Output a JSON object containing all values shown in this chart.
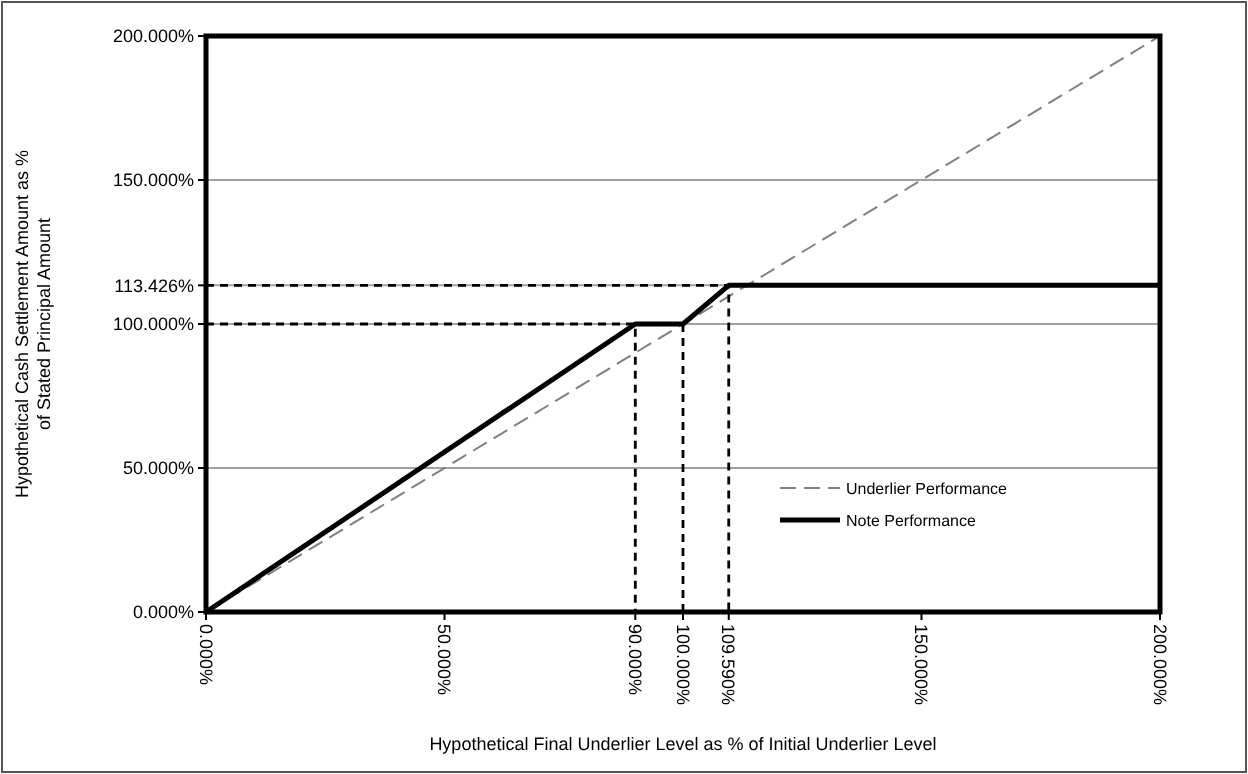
{
  "chart_data": {
    "type": "line",
    "xlabel": "Hypothetical Final Underlier Level as % of Initial Underlier Level",
    "ylabel": "Hypothetical Cash Settlement Amount as % of Stated Principal Amount",
    "xlim": [
      0,
      200
    ],
    "ylim": [
      0,
      200
    ],
    "xticks": [
      {
        "value": 0,
        "label": "0.000%"
      },
      {
        "value": 50,
        "label": "50.000%"
      },
      {
        "value": 90,
        "label": "90.000%"
      },
      {
        "value": 100,
        "label": "100.000%"
      },
      {
        "value": 109.59,
        "label": "109.590%"
      },
      {
        "value": 150,
        "label": "150.000%"
      },
      {
        "value": 200,
        "label": "200.000%"
      }
    ],
    "yticks": [
      {
        "value": 0,
        "label": "0.000%"
      },
      {
        "value": 50,
        "label": "50.000%"
      },
      {
        "value": 100,
        "label": "100.000%"
      },
      {
        "value": 113.426,
        "label": "113.426%"
      },
      {
        "value": 150,
        "label": "150.000%"
      },
      {
        "value": 200,
        "label": "200.000%"
      }
    ],
    "grid": "y",
    "legend": "bottom right",
    "series": [
      {
        "name": "Underlier Performance",
        "color": "#808080",
        "line_style": "dashed",
        "x": [
          0,
          200
        ],
        "values": [
          0,
          200
        ]
      },
      {
        "name": "Note Performance",
        "color": "#000000",
        "line_style": "solid",
        "x": [
          0,
          90,
          100,
          109.59,
          200
        ],
        "values": [
          0,
          100,
          100,
          113.426,
          113.426
        ]
      },
      {
        "color": "#000000",
        "line_style": "dotted",
        "x": [
          0,
          90,
          90
        ],
        "values": [
          100,
          100,
          0
        ]
      },
      {
        "color": "#000000",
        "line_style": "dotted",
        "x": [
          100,
          100
        ],
        "values": [
          100,
          0
        ]
      },
      {
        "color": "#000000",
        "line_style": "dotted",
        "x": [
          0,
          109.59,
          109.59
        ],
        "values": [
          113.426,
          113.426,
          0
        ]
      }
    ]
  }
}
